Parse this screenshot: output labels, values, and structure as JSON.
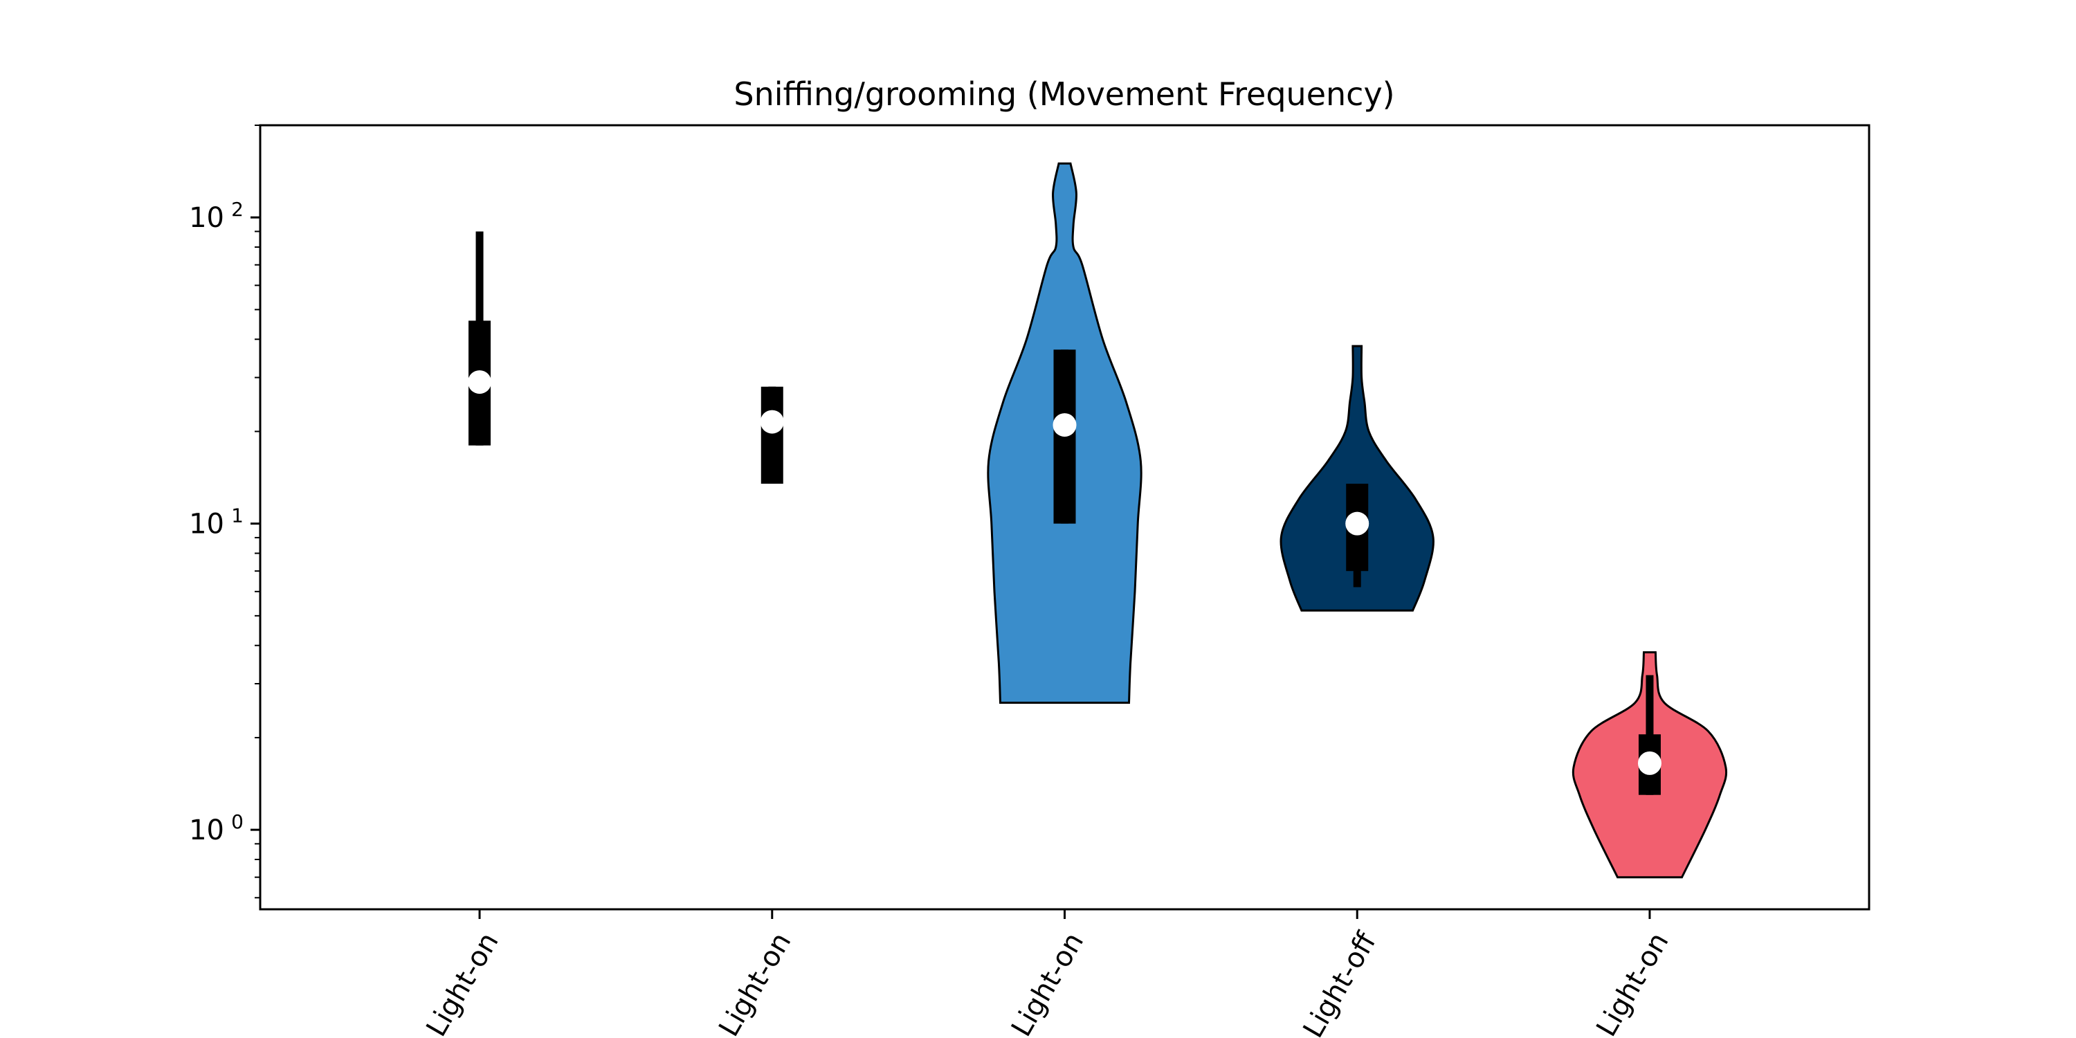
{
  "chart_data": {
    "type": "violin",
    "title": "Sniffing/grooming (Movement Frequency)",
    "xlabel": "",
    "ylabel": "",
    "yscale": "log",
    "ylim": [
      0.55,
      200
    ],
    "yticks": [
      {
        "value": 1,
        "base": "10",
        "exp": "0"
      },
      {
        "value": 10,
        "base": "10",
        "exp": "1"
      },
      {
        "value": 100,
        "base": "10",
        "exp": "2"
      }
    ],
    "grid": false,
    "legend": "none",
    "categories": [
      "Light-on",
      "Light-on",
      "Light-on",
      "Light-off",
      "Light-on"
    ],
    "series": [
      {
        "violin": null,
        "whisker_low": 18,
        "whisker_high": 90,
        "q1": 18,
        "q3": 46,
        "median": 29
      },
      {
        "violin": null,
        "whisker_low": 13.5,
        "whisker_high": 28,
        "q1": 13.5,
        "q3": 28,
        "median": 21.5
      },
      {
        "color": "#3a8dcb",
        "violin": [
          [
            2.6,
            0.44
          ],
          [
            3.5,
            0.45
          ],
          [
            6,
            0.48
          ],
          [
            10,
            0.5
          ],
          [
            16,
            0.52
          ],
          [
            25,
            0.42
          ],
          [
            40,
            0.26
          ],
          [
            70,
            0.12
          ],
          [
            80,
            0.06
          ],
          [
            95,
            0.06
          ],
          [
            120,
            0.08
          ],
          [
            150,
            0.04
          ]
        ],
        "whisker_low": 10,
        "whisker_high": 37,
        "q1": 10,
        "q3": 37,
        "median": 21
      },
      {
        "color": "#003660",
        "violin": [
          [
            5.2,
            0.38
          ],
          [
            6.5,
            0.46
          ],
          [
            9,
            0.52
          ],
          [
            12,
            0.4
          ],
          [
            16,
            0.2
          ],
          [
            20,
            0.08
          ],
          [
            25,
            0.05
          ],
          [
            30,
            0.03
          ],
          [
            38,
            0.03
          ]
        ],
        "whisker_low": 6.2,
        "whisker_high": 13.5,
        "q1": 7,
        "q3": 13.5,
        "median": 10
      },
      {
        "color": "#f25f6f",
        "violin": [
          [
            0.7,
            0.22
          ],
          [
            1.0,
            0.38
          ],
          [
            1.3,
            0.48
          ],
          [
            1.6,
            0.52
          ],
          [
            2.1,
            0.4
          ],
          [
            2.6,
            0.1
          ],
          [
            3.2,
            0.05
          ],
          [
            3.8,
            0.04
          ]
        ],
        "whisker_low": 1.3,
        "whisker_high": 3.2,
        "q1": 1.3,
        "q3": 2.05,
        "median": 1.65
      }
    ]
  }
}
